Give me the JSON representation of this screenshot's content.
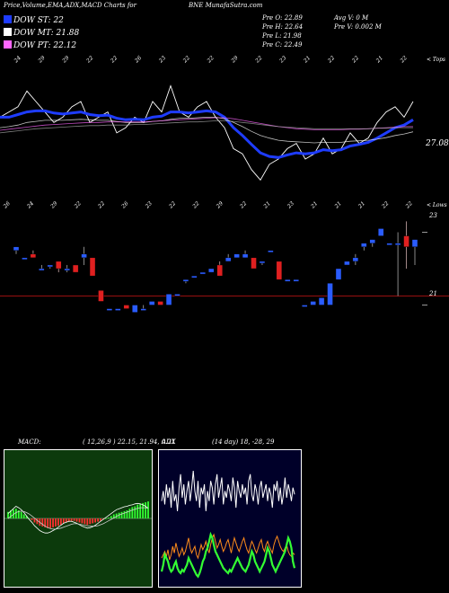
{
  "header": {
    "left_title": "Price,Volume,EMA,ADX,MACD Charts for",
    "symbol_title": "BNE MunafaSutra.com"
  },
  "legend": [
    {
      "label": "DOW ST: 22",
      "color": "#1e3cff"
    },
    {
      "label": "DOW MT: 21.88",
      "color": "#ffffff"
    },
    {
      "label": "DOW PT: 22.12",
      "color": "#ff66ff"
    }
  ],
  "stats": {
    "open": "Pre   O: 22.89",
    "high": "Pre   H: 22.64",
    "low": "Pre   L: 21.98",
    "close": "Pre   C: 22.49",
    "avg_volume": "Avg V: 0   M",
    "pre_volume": "Pre   V: 0.002   M"
  },
  "chart_data": [
    {
      "type": "line",
      "panel": "price_ema",
      "top_right_label": "< Tops",
      "last_value_label": "27.08",
      "top_date_ticks": [
        "24",
        "29",
        "29",
        "22",
        "22",
        "26",
        "23",
        "22",
        "22",
        "29",
        "22",
        "23",
        "21",
        "22",
        "22",
        "21",
        "22"
      ],
      "bottom_date_ticks": [
        "26",
        "24",
        "29",
        "22",
        "22",
        "26",
        "23",
        "22",
        "22",
        "29",
        "22",
        "21",
        "23",
        "21",
        "21",
        "21",
        "22",
        "22"
      ],
      "series": [
        {
          "color": "#ffffff",
          "values": [
            22.3,
            22.4,
            22.5,
            22.8,
            22.6,
            22.4,
            22.2,
            22.3,
            22.5,
            22.6,
            22.2,
            22.3,
            22.4,
            22.0,
            22.1,
            22.3,
            22.2,
            22.6,
            22.4,
            22.9,
            22.4,
            22.3,
            22.5,
            22.6,
            22.3,
            22.1,
            21.7,
            21.6,
            21.3,
            21.1,
            21.4,
            21.5,
            21.7,
            21.8,
            21.5,
            21.6,
            21.9,
            21.6,
            21.7,
            22.0,
            21.8,
            21.9,
            22.2,
            22.4,
            22.5,
            22.3,
            22.6
          ]
        },
        {
          "color": "#1e3cff",
          "values": [
            22.3,
            22.3,
            22.35,
            22.4,
            22.42,
            22.42,
            22.38,
            22.36,
            22.38,
            22.4,
            22.35,
            22.33,
            22.34,
            22.28,
            22.25,
            22.26,
            22.25,
            22.3,
            22.32,
            22.4,
            22.4,
            22.38,
            22.4,
            22.42,
            22.4,
            22.3,
            22.1,
            21.95,
            21.78,
            21.62,
            21.55,
            21.53,
            21.58,
            21.62,
            21.6,
            21.62,
            21.68,
            21.66,
            21.68,
            21.75,
            21.78,
            21.82,
            21.9,
            22.0,
            22.1,
            22.15,
            22.25
          ]
        },
        {
          "color": "#ffffff",
          "values": [
            22.1,
            22.12,
            22.15,
            22.2,
            22.22,
            22.24,
            22.24,
            22.24,
            22.25,
            22.26,
            22.25,
            22.24,
            22.24,
            22.22,
            22.2,
            22.2,
            22.2,
            22.22,
            22.23,
            22.26,
            22.28,
            22.28,
            22.29,
            22.3,
            22.3,
            22.27,
            22.2,
            22.12,
            22.03,
            21.95,
            21.9,
            21.86,
            21.84,
            21.83,
            21.82,
            21.81,
            21.82,
            21.82,
            21.82,
            21.84,
            21.85,
            21.86,
            21.88,
            21.91,
            21.95,
            21.98,
            22.02
          ]
        },
        {
          "color": "#ff66ff",
          "values": [
            22.05,
            22.07,
            22.09,
            22.11,
            22.13,
            22.15,
            22.16,
            22.17,
            22.18,
            22.19,
            22.2,
            22.2,
            22.21,
            22.21,
            22.21,
            22.21,
            22.21,
            22.22,
            22.23,
            22.24,
            22.25,
            22.26,
            22.27,
            22.28,
            22.29,
            22.29,
            22.27,
            22.24,
            22.21,
            22.18,
            22.15,
            22.12,
            22.1,
            22.08,
            22.07,
            22.06,
            22.06,
            22.06,
            22.06,
            22.07,
            22.07,
            22.08,
            22.09,
            22.1,
            22.11,
            22.12,
            22.12
          ]
        },
        {
          "color": "#aaaaaa",
          "values": [
            22.0,
            22.02,
            22.04,
            22.06,
            22.08,
            22.09,
            22.1,
            22.11,
            22.12,
            22.13,
            22.14,
            22.14,
            22.15,
            22.15,
            22.15,
            22.16,
            22.16,
            22.17,
            22.18,
            22.19,
            22.2,
            22.21,
            22.21,
            22.22,
            22.23,
            22.23,
            22.22,
            22.2,
            22.18,
            22.16,
            22.14,
            22.12,
            22.11,
            22.1,
            22.09,
            22.08,
            22.08,
            22.08,
            22.08,
            22.08,
            22.08,
            22.08,
            22.09,
            22.09,
            22.1,
            22.1,
            22.1
          ]
        }
      ]
    },
    {
      "type": "candlestick",
      "panel": "price",
      "top_right_label": "< Lows",
      "ylim": [
        20,
        24
      ],
      "ticks": [
        {
          "value": 23,
          "label": "23"
        },
        {
          "value": 21,
          "label": "21"
        }
      ],
      "reference_line": 21.25,
      "candles": [
        {
          "o": 22.5,
          "h": 22.6,
          "l": 22.4,
          "c": 22.6
        },
        {
          "o": 22.3,
          "h": 22.3,
          "l": 22.3,
          "c": 22.3
        },
        {
          "o": 22.4,
          "h": 22.5,
          "l": 22.3,
          "c": 22.3
        },
        {
          "o": 22.0,
          "h": 22.1,
          "l": 22.0,
          "c": 22.0
        },
        {
          "o": 22.1,
          "h": 22.1,
          "l": 22.0,
          "c": 22.1
        },
        {
          "o": 22.2,
          "h": 22.2,
          "l": 21.9,
          "c": 22.0
        },
        {
          "o": 22.0,
          "h": 22.1,
          "l": 21.9,
          "c": 22.0
        },
        {
          "o": 22.1,
          "h": 22.1,
          "l": 21.9,
          "c": 21.9
        },
        {
          "o": 22.3,
          "h": 22.6,
          "l": 22.1,
          "c": 22.4
        },
        {
          "o": 22.3,
          "h": 22.3,
          "l": 21.8,
          "c": 21.8
        },
        {
          "o": 21.4,
          "h": 21.4,
          "l": 21.1,
          "c": 21.1
        },
        {
          "o": 20.9,
          "h": 20.9,
          "l": 20.9,
          "c": 20.9
        },
        {
          "o": 20.9,
          "h": 20.9,
          "l": 20.9,
          "c": 20.9
        },
        {
          "o": 21.0,
          "h": 21.0,
          "l": 20.9,
          "c": 20.9
        },
        {
          "o": 20.8,
          "h": 21.0,
          "l": 20.8,
          "c": 21.0
        },
        {
          "o": 20.9,
          "h": 21.0,
          "l": 20.9,
          "c": 20.9
        },
        {
          "o": 21.0,
          "h": 21.1,
          "l": 21.0,
          "c": 21.1
        },
        {
          "o": 21.1,
          "h": 21.1,
          "l": 21.0,
          "c": 21.0
        },
        {
          "o": 21.0,
          "h": 21.3,
          "l": 21.0,
          "c": 21.3
        },
        {
          "o": 21.3,
          "h": 21.3,
          "l": 21.3,
          "c": 21.3
        },
        {
          "o": 21.7,
          "h": 21.7,
          "l": 21.6,
          "c": 21.7
        },
        {
          "o": 21.8,
          "h": 21.8,
          "l": 21.8,
          "c": 21.8
        },
        {
          "o": 21.9,
          "h": 21.9,
          "l": 21.9,
          "c": 21.9
        },
        {
          "o": 21.9,
          "h": 22.0,
          "l": 21.9,
          "c": 22.0
        },
        {
          "o": 22.1,
          "h": 22.2,
          "l": 21.8,
          "c": 21.8
        },
        {
          "o": 22.2,
          "h": 22.4,
          "l": 22.2,
          "c": 22.3
        },
        {
          "o": 22.3,
          "h": 22.4,
          "l": 22.3,
          "c": 22.4
        },
        {
          "o": 22.3,
          "h": 22.5,
          "l": 22.3,
          "c": 22.4
        },
        {
          "o": 22.3,
          "h": 22.3,
          "l": 22.0,
          "c": 22.0
        },
        {
          "o": 22.2,
          "h": 22.2,
          "l": 22.1,
          "c": 22.2
        },
        {
          "o": 22.5,
          "h": 22.5,
          "l": 22.5,
          "c": 22.5
        },
        {
          "o": 22.2,
          "h": 22.2,
          "l": 21.7,
          "c": 21.7
        },
        {
          "o": 21.7,
          "h": 21.7,
          "l": 21.7,
          "c": 21.7
        },
        {
          "o": 21.7,
          "h": 21.7,
          "l": 21.7,
          "c": 21.7
        },
        {
          "o": 21.0,
          "h": 21.0,
          "l": 21.0,
          "c": 21.0
        },
        {
          "o": 21.0,
          "h": 21.1,
          "l": 21.0,
          "c": 21.1
        },
        {
          "o": 21.0,
          "h": 21.2,
          "l": 21.0,
          "c": 21.2
        },
        {
          "o": 21.0,
          "h": 21.6,
          "l": 21.0,
          "c": 21.6
        },
        {
          "o": 21.7,
          "h": 22.0,
          "l": 21.7,
          "c": 22.0
        },
        {
          "o": 22.1,
          "h": 22.2,
          "l": 22.1,
          "c": 22.2
        },
        {
          "o": 22.2,
          "h": 22.4,
          "l": 22.1,
          "c": 22.3
        },
        {
          "o": 22.6,
          "h": 22.7,
          "l": 22.5,
          "c": 22.7
        },
        {
          "o": 22.7,
          "h": 22.8,
          "l": 22.6,
          "c": 22.8
        },
        {
          "o": 22.9,
          "h": 23.1,
          "l": 22.9,
          "c": 23.1
        },
        {
          "o": 22.7,
          "h": 22.7,
          "l": 22.7,
          "c": 22.7
        },
        {
          "o": 22.7,
          "h": 23.0,
          "l": 21.25,
          "c": 22.7
        },
        {
          "o": 22.9,
          "h": 23.3,
          "l": 22.0,
          "c": 22.6
        },
        {
          "o": 22.6,
          "h": 22.8,
          "l": 22.1,
          "c": 22.8
        }
      ]
    },
    {
      "type": "bar",
      "panel": "macd",
      "label": "MACD:",
      "params": "( 12,26,9 ) 22.15, 21.94, 0.21",
      "histogram": [
        0.08,
        0.1,
        0.11,
        0.12,
        0.1,
        0.08,
        0.05,
        0.03,
        0.0,
        -0.02,
        -0.05,
        -0.07,
        -0.09,
        -0.1,
        -0.11,
        -0.12,
        -0.12,
        -0.11,
        -0.1,
        -0.09,
        -0.08,
        -0.06,
        -0.05,
        -0.04,
        -0.03,
        -0.03,
        -0.04,
        -0.05,
        -0.06,
        -0.07,
        -0.08,
        -0.07,
        -0.06,
        -0.05,
        -0.04,
        -0.03,
        -0.01,
        0.0,
        0.01,
        0.03,
        0.05,
        0.06,
        0.07,
        0.08,
        0.09,
        0.1,
        0.12,
        0.14,
        0.15,
        0.17,
        0.18,
        0.19,
        0.2,
        0.21
      ],
      "lines": [
        {
          "color": "#ffffff",
          "values": [
            0.1,
            0.15,
            0.2,
            0.25,
            0.22,
            0.18,
            0.12,
            0.05,
            -0.02,
            -0.08,
            -0.15,
            -0.2,
            -0.25,
            -0.28,
            -0.3,
            -0.3,
            -0.28,
            -0.25,
            -0.22,
            -0.18,
            -0.14,
            -0.1,
            -0.08,
            -0.06,
            -0.06,
            -0.08,
            -0.1,
            -0.13,
            -0.16,
            -0.18,
            -0.2,
            -0.19,
            -0.17,
            -0.14,
            -0.1,
            -0.06,
            -0.02,
            0.02,
            0.06,
            0.1,
            0.14,
            0.18,
            0.2,
            0.22,
            0.24,
            0.25,
            0.27,
            0.28,
            0.3,
            0.31,
            0.3,
            0.28,
            0.25,
            0.21
          ]
        },
        {
          "color": "#cccccc",
          "values": [
            0.0,
            0.04,
            0.08,
            0.12,
            0.14,
            0.15,
            0.14,
            0.12,
            0.09,
            0.05,
            0.01,
            -0.04,
            -0.08,
            -0.12,
            -0.16,
            -0.19,
            -0.21,
            -0.22,
            -0.22,
            -0.21,
            -0.2,
            -0.18,
            -0.16,
            -0.14,
            -0.12,
            -0.11,
            -0.11,
            -0.12,
            -0.13,
            -0.14,
            -0.15,
            -0.16,
            -0.16,
            -0.16,
            -0.15,
            -0.13,
            -0.11,
            -0.08,
            -0.05,
            -0.02,
            0.01,
            0.04,
            0.07,
            0.09,
            0.11,
            0.13,
            0.15,
            0.17,
            0.19,
            0.21,
            0.22,
            0.22,
            0.22,
            0.21
          ]
        }
      ]
    },
    {
      "type": "line",
      "panel": "adx",
      "label": "ADX",
      "params": "(14 day) 18, -28, 29",
      "series": [
        {
          "color": "#ffffff",
          "values": [
            50,
            56,
            48,
            60,
            52,
            58,
            46,
            62,
            50,
            54,
            44,
            58,
            66,
            52,
            60,
            48,
            56,
            62,
            50,
            58,
            68,
            56,
            50,
            62,
            46,
            58,
            54,
            60,
            44,
            56,
            50,
            62,
            58,
            48,
            60,
            66,
            52,
            58,
            64,
            48,
            56,
            52,
            60,
            56,
            50,
            64,
            58,
            46,
            62,
            56,
            52,
            60,
            54,
            58,
            48,
            62,
            66,
            54,
            50,
            60,
            56,
            48,
            58,
            62,
            52,
            56,
            60,
            50,
            58,
            54,
            46,
            60,
            56,
            62,
            50,
            58,
            48,
            54,
            64,
            52,
            60,
            56,
            50,
            58,
            54
          ]
        },
        {
          "color": "#ff8c1a",
          "values": [
            16,
            18,
            20,
            17,
            21,
            15,
            18,
            23,
            19,
            25,
            21,
            17,
            19,
            22,
            18,
            20,
            24,
            28,
            22,
            19,
            21,
            23,
            18,
            16,
            20,
            24,
            21,
            23,
            26,
            22,
            19,
            24,
            28,
            30,
            26,
            22,
            24,
            27,
            23,
            20,
            22,
            25,
            27,
            23,
            19,
            24,
            28,
            25,
            22,
            20,
            23,
            26,
            28,
            24,
            21,
            19,
            23,
            26,
            24,
            21,
            19,
            22,
            25,
            27,
            22,
            20,
            24,
            26,
            23,
            21,
            19,
            24,
            27,
            29,
            26,
            23,
            21,
            20,
            22,
            24,
            20,
            18,
            17,
            19,
            18
          ]
        },
        {
          "color": "#33ff33",
          "values": [
            8,
            12,
            18,
            16,
            14,
            10,
            8,
            9,
            12,
            14,
            10,
            8,
            7,
            9,
            8,
            10,
            12,
            16,
            14,
            12,
            10,
            8,
            6,
            5,
            7,
            10,
            14,
            16,
            20,
            22,
            26,
            30,
            28,
            24,
            20,
            18,
            16,
            14,
            12,
            10,
            9,
            8,
            7,
            9,
            8,
            10,
            12,
            14,
            16,
            14,
            12,
            10,
            9,
            8,
            10,
            12,
            16,
            20,
            18,
            14,
            12,
            10,
            8,
            10,
            12,
            14,
            18,
            22,
            20,
            16,
            12,
            10,
            8,
            10,
            12,
            14,
            16,
            18,
            20,
            24,
            28,
            26,
            22,
            14,
            10
          ]
        }
      ]
    }
  ]
}
